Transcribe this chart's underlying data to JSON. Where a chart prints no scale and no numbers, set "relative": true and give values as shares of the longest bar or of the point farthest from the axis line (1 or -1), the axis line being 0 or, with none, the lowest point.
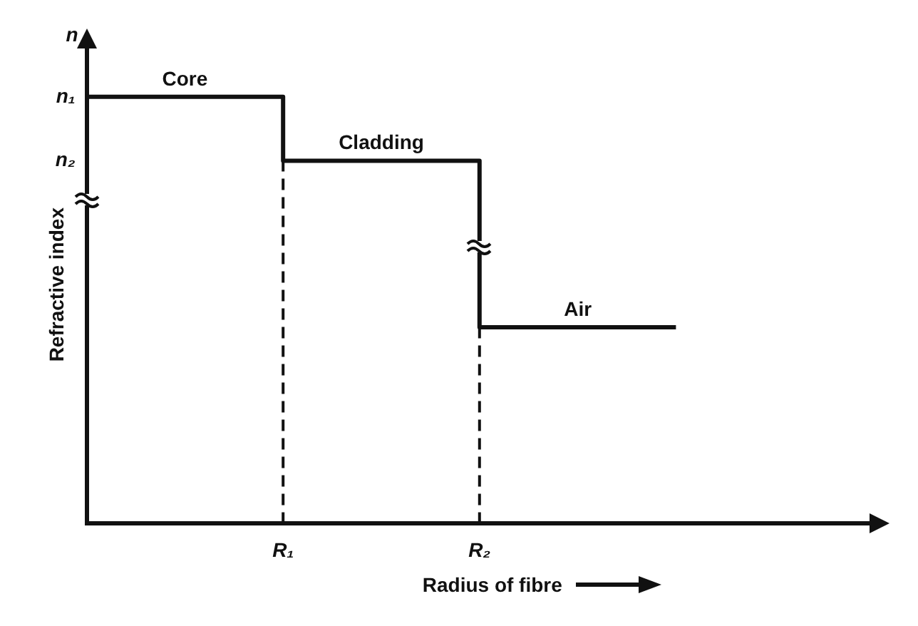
{
  "chart_data": {
    "type": "step",
    "relative": true,
    "ylabel": "Refractive index",
    "xlabel": "Radius of fibre",
    "categories": [
      null,
      "R₁",
      "R₂",
      null,
      null
    ],
    "series": [
      {
        "color": "#111111",
        "values": [
          1,
          0.85,
          0.46,
          0.46,
          null
        ]
      }
    ],
    "ref_lines": [
      {
        "axis": "x",
        "value": "R₁",
        "line_style": "dashed"
      },
      {
        "axis": "x",
        "value": "R₂",
        "line_style": "dashed"
      }
    ],
    "annotations": [
      "n",
      "n₁",
      "n₂",
      "Core",
      "Cladding",
      "Air"
    ],
    "grid": false,
    "legend": false
  }
}
